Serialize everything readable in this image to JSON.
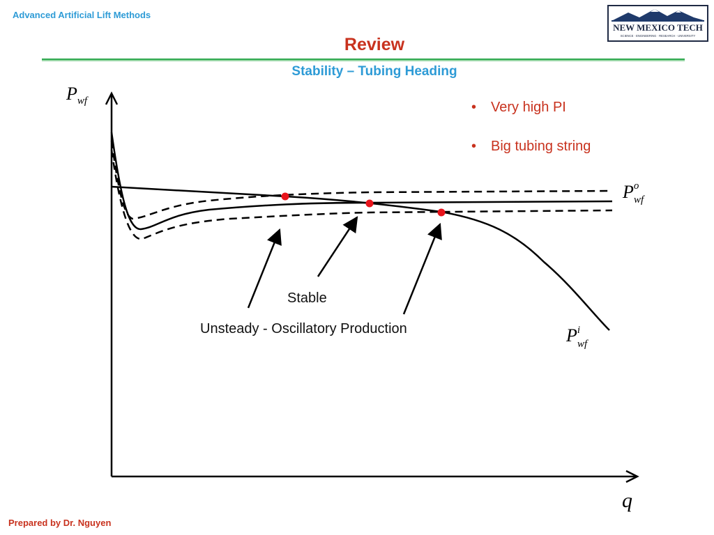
{
  "header": {
    "course": "Advanced Artificial Lift Methods",
    "title": "Review",
    "subtitle": "Stability – Tubing Heading"
  },
  "logo": {
    "name": "NEW MEXICO TECH",
    "tagline": "SCIENCE · ENGINEERING · RESEARCH · UNIVERSITY"
  },
  "bullets": [
    "Very high PI",
    "Big tubing string"
  ],
  "diagram": {
    "y_axis": {
      "symbol": "P",
      "subscript": "wf"
    },
    "x_axis": {
      "symbol": "q"
    },
    "outflow_label": {
      "symbol": "P",
      "subscript": "wf",
      "superscript": "o"
    },
    "inflow_label": {
      "symbol": "P",
      "subscript": "wf",
      "superscript": "i"
    },
    "labels": {
      "stable": "Stable",
      "unsteady": "Unsteady - Oscillatory Production"
    },
    "colors": {
      "curve": "#000000",
      "intersection_point": "#e8141c"
    }
  },
  "footer": {
    "author": "Prepared by Dr. Nguyen"
  }
}
